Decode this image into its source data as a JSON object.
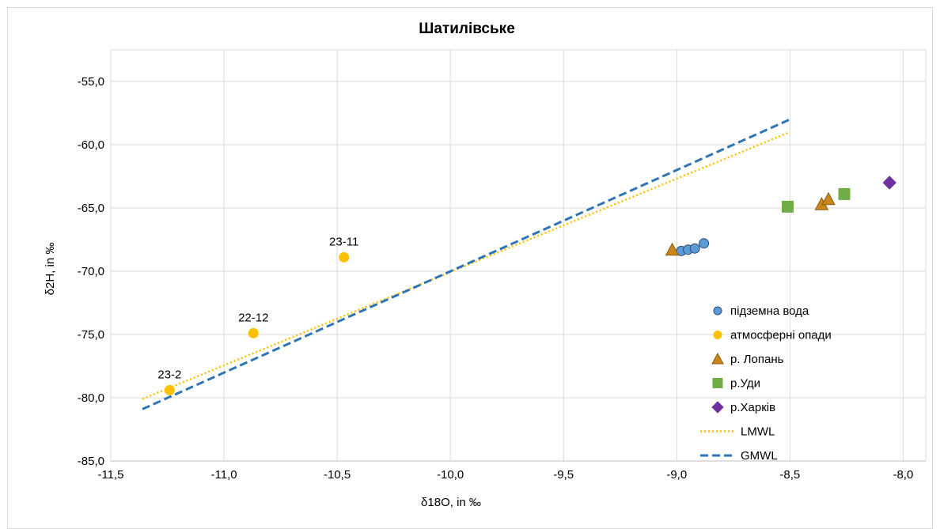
{
  "chart_data": {
    "type": "scatter",
    "title": "Шатилівське",
    "xlabel": "δ18O, in ‰",
    "ylabel": "δ2H, in ‰",
    "xlim": [
      -11.5,
      -7.9
    ],
    "ylim": [
      -85,
      -52.5
    ],
    "x_ticks": [
      -11.5,
      -11.0,
      -10.5,
      -10.0,
      -9.5,
      -9.0,
      -8.5,
      -8.0
    ],
    "x_tick_labels": [
      "-11,5",
      "-11,0",
      "-10,5",
      "-10,0",
      "-9,5",
      "-9,0",
      "-8,5",
      "-8,0"
    ],
    "y_ticks": [
      -85,
      -80,
      -75,
      -70,
      -65,
      -60,
      -55
    ],
    "y_tick_labels": [
      "-85,0",
      "-80,0",
      "-75,0",
      "-70,0",
      "-65,0",
      "-60,0",
      "-55,0"
    ],
    "grid": true,
    "legend_position": "bottom-right",
    "series": [
      {
        "name": "підземна вода",
        "marker": "circle",
        "color": "#5b9bd5",
        "stroke": "#2e4a6b",
        "points": [
          {
            "x": -8.98,
            "y": -68.4
          },
          {
            "x": -8.95,
            "y": -68.3
          },
          {
            "x": -8.92,
            "y": -68.2
          },
          {
            "x": -8.88,
            "y": -67.8
          }
        ]
      },
      {
        "name": "атмосферні опади",
        "marker": "circle",
        "color": "#ffc000",
        "stroke": "#ffc000",
        "points": [
          {
            "x": -11.24,
            "y": -79.4,
            "label": "23-2"
          },
          {
            "x": -10.87,
            "y": -74.9,
            "label": "22-12"
          },
          {
            "x": -10.47,
            "y": -68.9,
            "label": "23-11"
          }
        ]
      },
      {
        "name": "р. Лопань",
        "marker": "triangle",
        "color": "#c9861c",
        "stroke": "#8a5a10",
        "points": [
          {
            "x": -9.02,
            "y": -68.3
          },
          {
            "x": -8.36,
            "y": -64.7
          },
          {
            "x": -8.33,
            "y": -64.3
          }
        ]
      },
      {
        "name": "р.Уди",
        "marker": "square",
        "color": "#70ad47",
        "stroke": "#70ad47",
        "points": [
          {
            "x": -8.51,
            "y": -64.9
          },
          {
            "x": -8.26,
            "y": -63.9
          }
        ]
      },
      {
        "name": "р.Харків",
        "marker": "diamond",
        "color": "#7030a0",
        "stroke": "#7030a0",
        "points": [
          {
            "x": -8.06,
            "y": -63.0
          }
        ]
      }
    ],
    "lines": [
      {
        "name": "LMWL",
        "style": "dotted",
        "color": "#ffc000",
        "points": [
          {
            "x": -11.36,
            "y": -80.1
          },
          {
            "x": -8.5,
            "y": -59.0
          }
        ]
      },
      {
        "name": "GMWL",
        "style": "dashed",
        "color": "#2e75b6",
        "points": [
          {
            "x": -11.36,
            "y": -80.9
          },
          {
            "x": -8.5,
            "y": -58.0
          }
        ]
      }
    ],
    "colors": {
      "grid": "#d9d9d9",
      "axis_text": "#000000"
    }
  }
}
